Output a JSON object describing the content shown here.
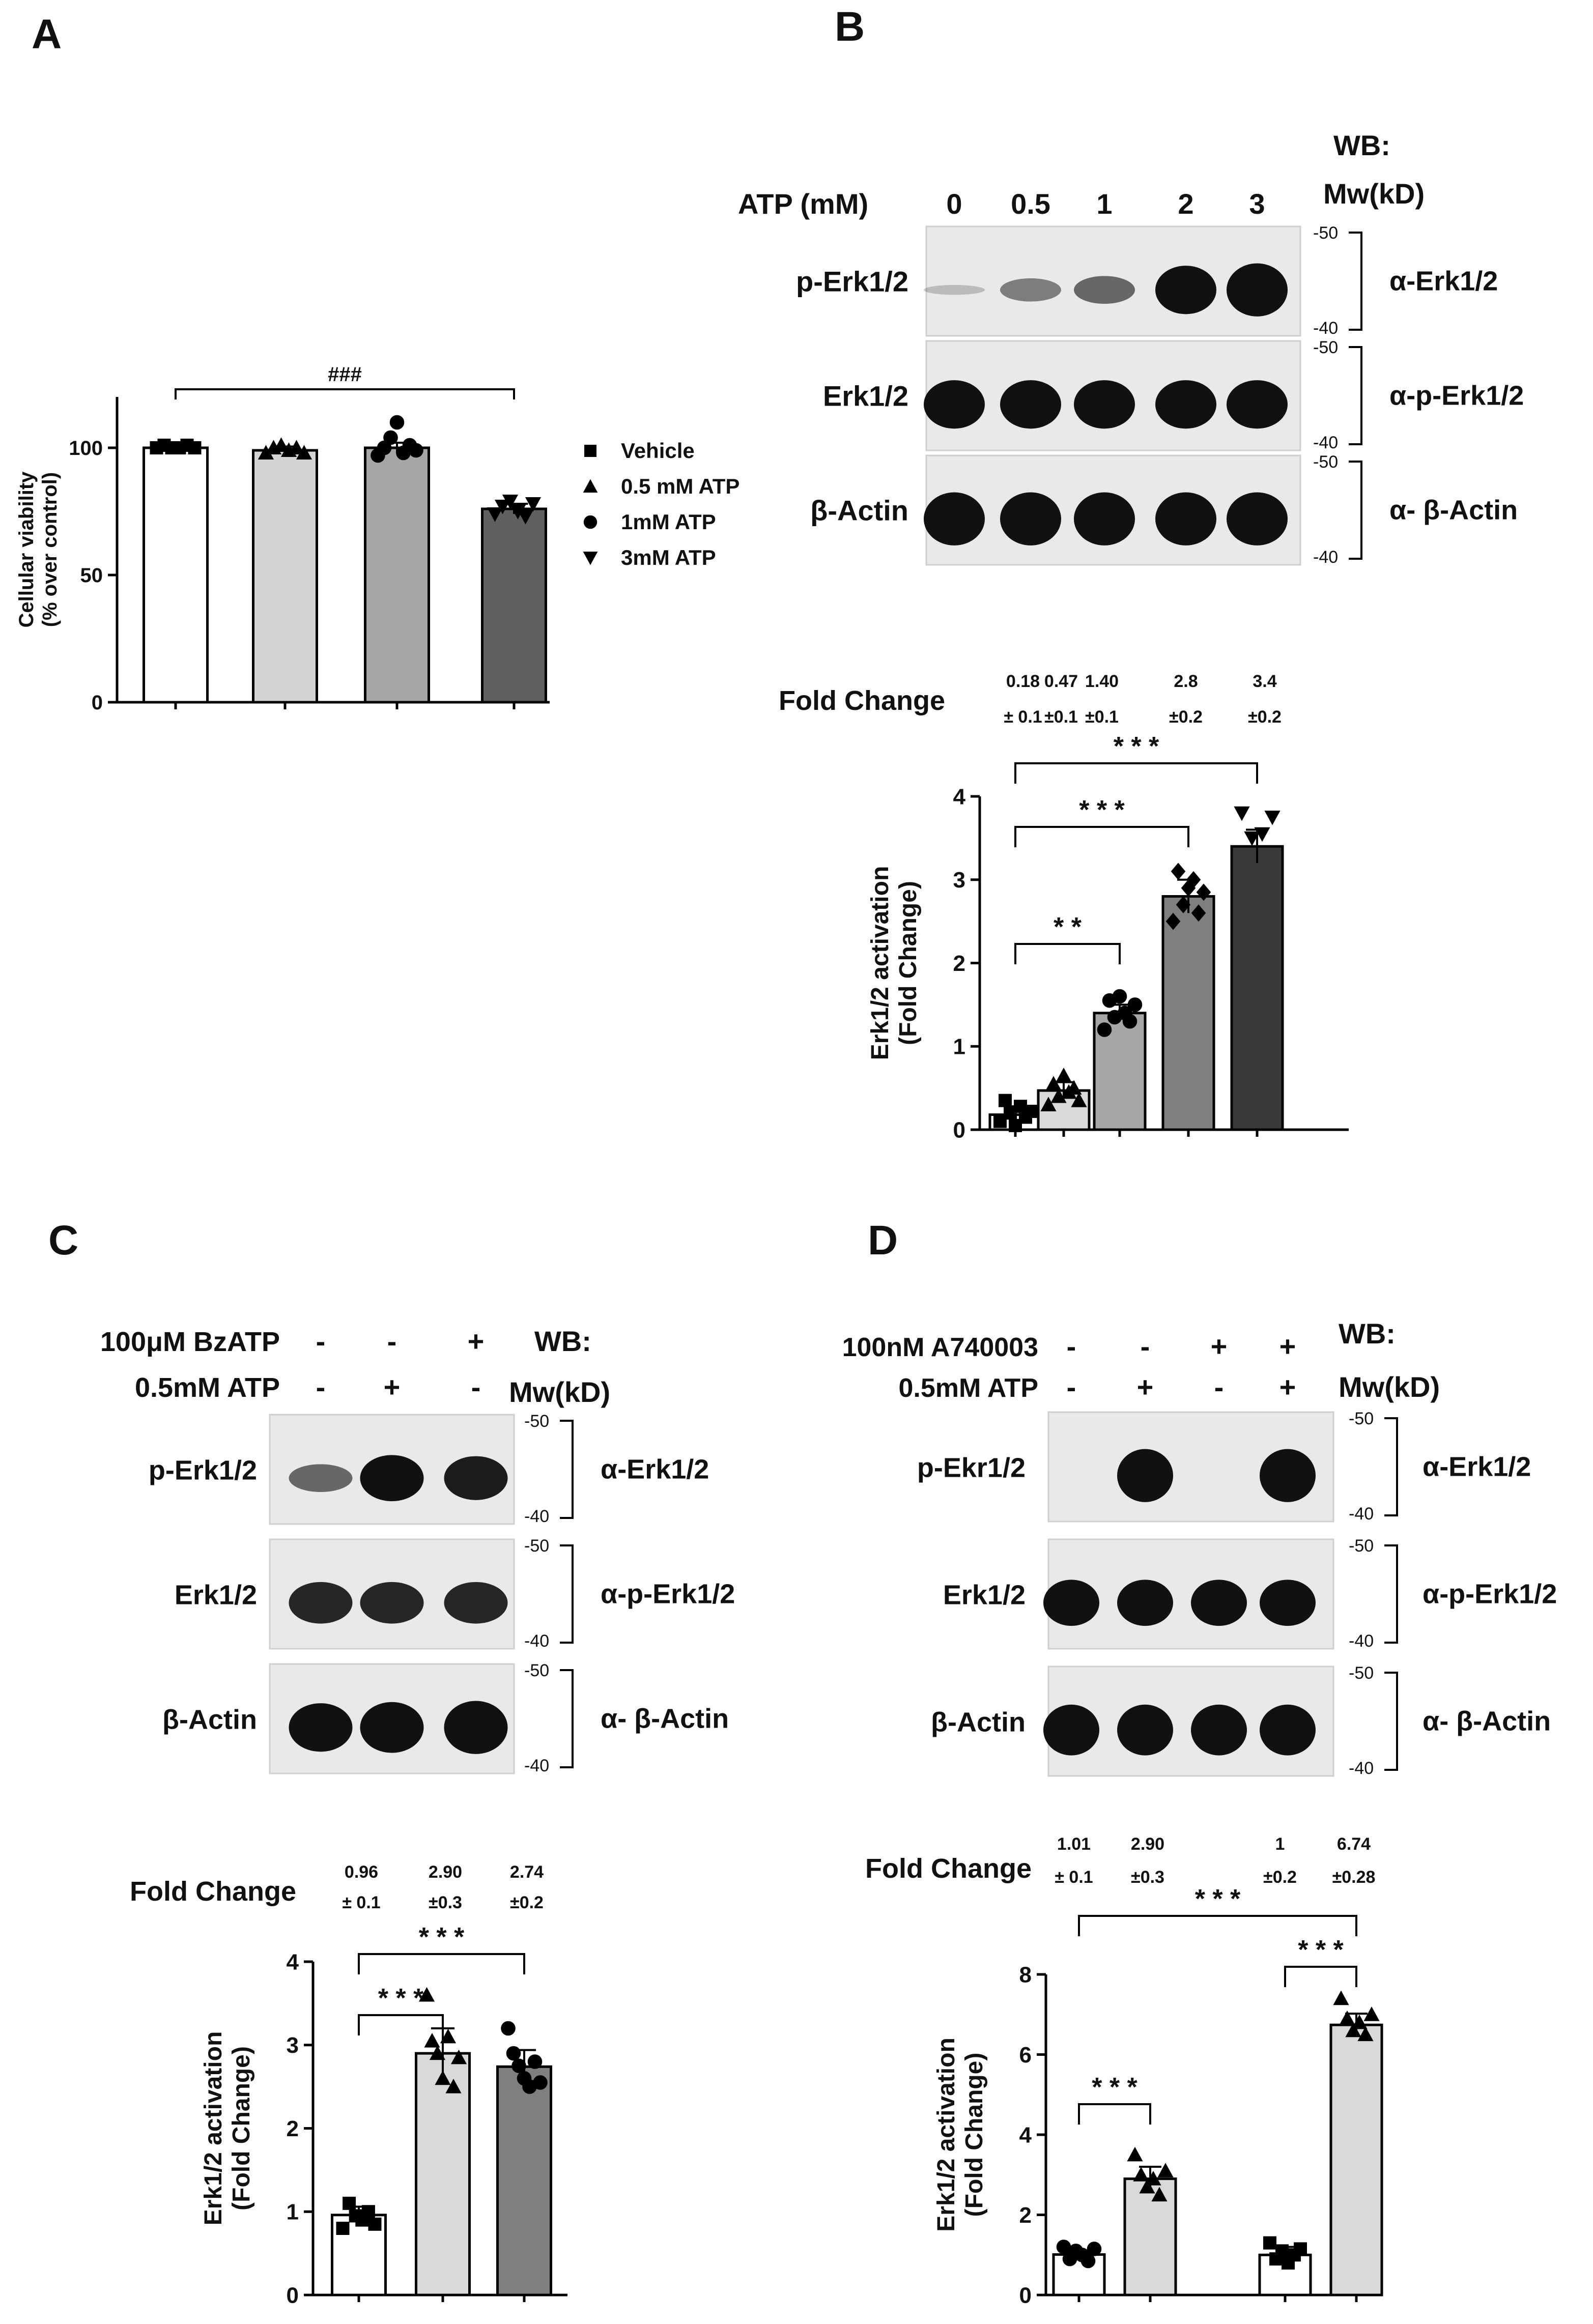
{
  "panels": {
    "A": "A",
    "B": "B",
    "C": "C",
    "D": "D"
  },
  "blots": {
    "B": {
      "wb_label": "WB:",
      "mw_label": "Mw(kD)",
      "treatment_label": "ATP (mM)",
      "lanes": [
        "0",
        "0.5",
        "1",
        "2",
        "3"
      ],
      "rows": [
        {
          "label": "p-Erk1/2",
          "antibody": "α-Erk1/2",
          "mw_top": "-50",
          "mw_bottom": "-40"
        },
        {
          "label": "Erk1/2",
          "antibody": "α-p-Erk1/2",
          "mw_top": "-50",
          "mw_bottom": "-40"
        },
        {
          "label": "β-Actin",
          "antibody": "α- β-Actin",
          "mw_top": "-50",
          "mw_bottom": "-40"
        }
      ],
      "band_intensity": {
        "p-Erk1/2": [
          0.06,
          0.35,
          0.45,
          0.9,
          1.0
        ],
        "Erk1/2": [
          0.9,
          0.9,
          0.9,
          0.9,
          0.9
        ],
        "β-Actin": [
          1.0,
          1.0,
          1.0,
          1.0,
          1.0
        ]
      }
    },
    "C": {
      "wb_label": "WB:",
      "mw_label": "Mw(kD)",
      "treatments": [
        {
          "label": "100μM BzATP",
          "signs": [
            "-",
            "-",
            "+"
          ]
        },
        {
          "label": "0.5mM ATP",
          "signs": [
            "-",
            "+",
            "-"
          ]
        }
      ],
      "rows": [
        {
          "label": "p-Erk1/2",
          "antibody": "α-Erk1/2",
          "mw_top": "-50",
          "mw_bottom": "-40"
        },
        {
          "label": "Erk1/2",
          "antibody": "α-p-Erk1/2",
          "mw_top": "-50",
          "mw_bottom": "-40"
        },
        {
          "label": "β-Actin",
          "antibody": "α- β-Actin",
          "mw_top": "-50",
          "mw_bottom": "-40"
        }
      ],
      "band_intensity": {
        "p-Erk1/2": [
          0.45,
          0.85,
          0.8
        ],
        "Erk1/2": [
          0.75,
          0.75,
          0.75
        ],
        "β-Actin": [
          0.9,
          0.95,
          1.0
        ]
      }
    },
    "D": {
      "wb_label": "WB:",
      "mw_label": "Mw(kD)",
      "treatments": [
        {
          "label": "100nM A740003",
          "signs": [
            "-",
            "-",
            "+",
            "+"
          ]
        },
        {
          "label": "0.5mM ATP",
          "signs": [
            "-",
            "+",
            "-",
            "+"
          ]
        }
      ],
      "rows": [
        {
          "label": "p-Ekr1/2",
          "antibody": "α-Erk1/2",
          "mw_top": "-50",
          "mw_bottom": "-40"
        },
        {
          "label": "Erk1/2",
          "antibody": "α-p-Erk1/2",
          "mw_top": "-50",
          "mw_bottom": "-40"
        },
        {
          "label": "β-Actin",
          "antibody": "α- β-Actin",
          "mw_top": "-50",
          "mw_bottom": "-40"
        }
      ],
      "band_intensity": {
        "p-Ekr1/2": [
          0.0,
          1.0,
          0.0,
          1.0
        ],
        "Erk1/2": [
          0.85,
          0.85,
          0.85,
          0.85
        ],
        "β-Actin": [
          0.95,
          0.95,
          0.95,
          0.95
        ]
      }
    }
  },
  "fold_change": {
    "B": {
      "label": "Fold Change",
      "means": [
        "0.18",
        "0.47",
        "1.40",
        "2.8",
        "3.4"
      ],
      "sems": [
        "± 0.1",
        "±0.1",
        "±0.1",
        "±0.2",
        "±0.2"
      ]
    },
    "C": {
      "label": "Fold Change",
      "means": [
        "0.96",
        "2.90",
        "2.74"
      ],
      "sems": [
        "± 0.1",
        "±0.3",
        "±0.2"
      ]
    },
    "D": {
      "label": "Fold Change",
      "means": [
        "1.01",
        "2.90",
        "1",
        "6.74"
      ],
      "sems": [
        "± 0.1",
        "±0.3",
        "±0.2",
        "±0.28"
      ]
    }
  },
  "chart_data": [
    {
      "panel": "A",
      "type": "bar",
      "ylabel": [
        "Cellular viability",
        "(% over control)"
      ],
      "ylim": [
        0,
        120
      ],
      "yticks": [
        0,
        50,
        100
      ],
      "categories": [
        "Vehicle",
        "0.5 mM ATP",
        "1mM ATP",
        "3mM ATP"
      ],
      "values": [
        100,
        99,
        100,
        76
      ],
      "errors": [
        1,
        1.5,
        2,
        2
      ],
      "fills": [
        "#ffffff",
        "#d4d4d4",
        "#a6a6a6",
        "#5f5f5f"
      ],
      "markers": [
        "square",
        "triangle",
        "circle",
        "triangle-down"
      ],
      "points": [
        [
          100,
          101,
          100,
          100,
          101,
          100
        ],
        [
          98,
          100,
          101,
          99,
          100,
          98
        ],
        [
          97,
          100,
          104,
          110,
          98,
          101,
          99
        ],
        [
          74,
          77,
          79,
          75,
          73,
          78
        ]
      ],
      "legend": {
        "entries": [
          "Vehicle",
          "0.5 mM ATP",
          "1mM ATP",
          "3mM ATP"
        ],
        "placement": "right"
      },
      "annotations": [
        {
          "text": "###",
          "from": 0,
          "to": 3
        }
      ]
    },
    {
      "panel": "B",
      "type": "bar",
      "ylabel": [
        "Erk1/2 activation",
        "(Fold Change)"
      ],
      "ylim": [
        0,
        4
      ],
      "yticks": [
        0,
        1,
        2,
        3,
        4
      ],
      "values": [
        0.18,
        0.47,
        1.4,
        2.8,
        3.4
      ],
      "errors": [
        0.1,
        0.1,
        0.1,
        0.2,
        0.2
      ],
      "fills": [
        "#ffffff",
        "#d9d9d9",
        "#a6a6a6",
        "#7f7f7f",
        "#3a3a3a"
      ],
      "markers": [
        "square",
        "triangle",
        "circle",
        "diamond",
        "triangle-down"
      ],
      "points": [
        [
          0.1,
          0.35,
          0.2,
          0.05,
          0.28,
          0.15,
          0.22
        ],
        [
          0.3,
          0.55,
          0.4,
          0.65,
          0.45,
          0.5,
          0.35
        ],
        [
          1.2,
          1.55,
          1.35,
          1.6,
          1.4,
          1.3,
          1.5
        ],
        [
          2.5,
          3.1,
          2.7,
          2.9,
          3.0,
          2.6,
          2.85
        ],
        [
          3.8,
          3.5,
          3.55,
          3.75
        ]
      ],
      "annotations": [
        {
          "text": "* * *",
          "from": 0,
          "to": 4
        },
        {
          "text": "* * *",
          "from": 0,
          "to": 3
        },
        {
          "text": "* *",
          "from": 0,
          "to": 2
        }
      ]
    },
    {
      "panel": "C",
      "type": "bar",
      "ylabel": [
        "Erk1/2 activation",
        "(Fold Change)"
      ],
      "ylim": [
        0,
        4
      ],
      "yticks": [
        0,
        1,
        2,
        3,
        4
      ],
      "values": [
        0.96,
        2.9,
        2.74
      ],
      "errors": [
        0.1,
        0.3,
        0.2
      ],
      "fills": [
        "#ffffff",
        "#d9d9d9",
        "#7f7f7f"
      ],
      "markers": [
        "square",
        "triangle",
        "circle"
      ],
      "points": [
        [
          0.8,
          1.1,
          0.95,
          0.9,
          1.0,
          0.85
        ],
        [
          3.6,
          3.05,
          2.9,
          2.6,
          3.1,
          2.5,
          2.85
        ],
        [
          3.2,
          2.9,
          2.75,
          2.6,
          2.5,
          2.8,
          2.55
        ]
      ],
      "annotations": [
        {
          "text": "* * *",
          "from": 0,
          "to": 2
        },
        {
          "text": "* * *",
          "from": 0,
          "to": 1
        }
      ]
    },
    {
      "panel": "D",
      "type": "bar",
      "ylabel": [
        "Erk1/2 activation",
        "(Fold Change)"
      ],
      "ylim": [
        0,
        8
      ],
      "yticks": [
        0,
        2,
        4,
        6,
        8
      ],
      "values": [
        1.01,
        2.9,
        1,
        6.74
      ],
      "errors": [
        0.1,
        0.3,
        0.2,
        0.28
      ],
      "fills": [
        "#ffffff",
        "#d9d9d9",
        "#ffffff",
        "#d9d9d9"
      ],
      "markers": [
        "circle",
        "triangle",
        "square",
        "triangle"
      ],
      "points": [
        [
          1.2,
          0.9,
          1.1,
          1.0,
          0.85,
          1.15
        ],
        [
          3.5,
          3.0,
          2.7,
          2.9,
          2.5,
          3.1
        ],
        [
          1.3,
          0.9,
          1.1,
          0.8,
          1.0,
          1.15
        ],
        [
          7.4,
          6.9,
          6.6,
          6.8,
          6.5,
          7.0
        ]
      ],
      "annotations": [
        {
          "text": "* * *",
          "from": 0,
          "to": 3
        },
        {
          "text": "* * *",
          "from": 0,
          "to": 1
        },
        {
          "text": "* * *",
          "from": 2,
          "to": 3
        }
      ]
    }
  ]
}
